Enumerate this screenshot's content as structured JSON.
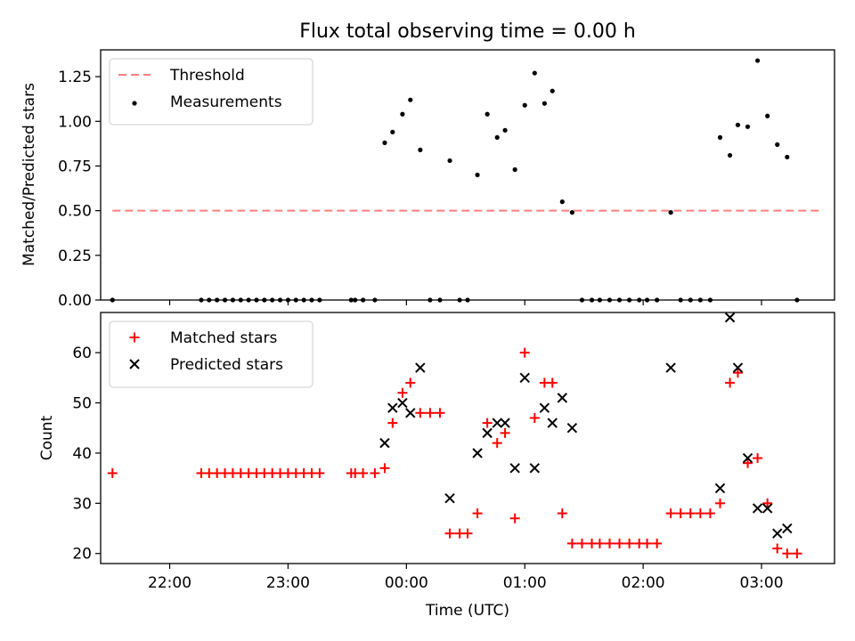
{
  "chart_data": [
    {
      "type": "scatter",
      "title": "Flux total observing time = 0.00 h",
      "xlabel": "",
      "ylabel": "Matched/Predicted stars",
      "ylim": [
        0,
        1.4
      ],
      "xlim": [
        "21:25",
        "03:37"
      ],
      "y_ticks": [
        "0.00",
        "0.25",
        "0.50",
        "0.75",
        "1.00",
        "1.25"
      ],
      "x_ticks": [
        "22:00",
        "23:00",
        "00:00",
        "01:00",
        "02:00",
        "03:00"
      ],
      "legend_position": "upper left",
      "series": [
        {
          "name": "Threshold",
          "kind": "line",
          "style": "dashed",
          "color": "#ff7f7f",
          "points": [
            [
              "21:31",
              0.5
            ],
            [
              "03:31",
              0.5
            ]
          ]
        },
        {
          "name": "Measurements",
          "kind": "scatter",
          "marker": "dot",
          "color": "#000000",
          "points": [
            [
              "21:31",
              0.0
            ],
            [
              "22:16",
              0.0
            ],
            [
              "22:20",
              0.0
            ],
            [
              "22:24",
              0.0
            ],
            [
              "22:28",
              0.0
            ],
            [
              "22:32",
              0.0
            ],
            [
              "22:36",
              0.0
            ],
            [
              "22:40",
              0.0
            ],
            [
              "22:44",
              0.0
            ],
            [
              "22:48",
              0.0
            ],
            [
              "22:52",
              0.0
            ],
            [
              "22:56",
              0.0
            ],
            [
              "23:00",
              0.0
            ],
            [
              "23:04",
              0.0
            ],
            [
              "23:08",
              0.0
            ],
            [
              "23:12",
              0.0
            ],
            [
              "23:16",
              0.0
            ],
            [
              "23:32",
              0.0
            ],
            [
              "23:34",
              0.0
            ],
            [
              "23:38",
              0.0
            ],
            [
              "23:44",
              0.0
            ],
            [
              "23:49",
              0.88
            ],
            [
              "23:53",
              0.94
            ],
            [
              "23:58",
              1.04
            ],
            [
              "00:02",
              1.12
            ],
            [
              "00:07",
              0.84
            ],
            [
              "00:12",
              0.0
            ],
            [
              "00:17",
              0.0
            ],
            [
              "00:22",
              0.78
            ],
            [
              "00:27",
              0.0
            ],
            [
              "00:31",
              0.0
            ],
            [
              "00:36",
              0.7
            ],
            [
              "00:41",
              1.04
            ],
            [
              "00:46",
              0.91
            ],
            [
              "00:50",
              0.95
            ],
            [
              "00:55",
              0.73
            ],
            [
              "01:00",
              1.09
            ],
            [
              "01:05",
              1.27
            ],
            [
              "01:10",
              1.1
            ],
            [
              "01:14",
              1.17
            ],
            [
              "01:19",
              0.55
            ],
            [
              "01:24",
              0.49
            ],
            [
              "01:29",
              0.0
            ],
            [
              "01:34",
              0.0
            ],
            [
              "01:38",
              0.0
            ],
            [
              "01:43",
              0.0
            ],
            [
              "01:48",
              0.0
            ],
            [
              "01:53",
              0.0
            ],
            [
              "01:58",
              0.0
            ],
            [
              "02:02",
              0.0
            ],
            [
              "02:07",
              0.0
            ],
            [
              "02:14",
              0.49
            ],
            [
              "02:19",
              0.0
            ],
            [
              "02:24",
              0.0
            ],
            [
              "02:29",
              0.0
            ],
            [
              "02:34",
              0.0
            ],
            [
              "02:39",
              0.91
            ],
            [
              "02:44",
              0.81
            ],
            [
              "02:48",
              0.98
            ],
            [
              "02:53",
              0.97
            ],
            [
              "02:58",
              1.34
            ],
            [
              "03:03",
              1.03
            ],
            [
              "03:08",
              0.87
            ],
            [
              "03:13",
              0.8
            ],
            [
              "03:18",
              0.0
            ]
          ]
        }
      ]
    },
    {
      "type": "scatter",
      "title": "",
      "xlabel": "Time (UTC)",
      "ylabel": "Count",
      "ylim": [
        18,
        68
      ],
      "xlim": [
        "21:25",
        "03:37"
      ],
      "y_ticks": [
        "20",
        "30",
        "40",
        "50",
        "60"
      ],
      "x_ticks": [
        "22:00",
        "23:00",
        "00:00",
        "01:00",
        "02:00",
        "03:00"
      ],
      "legend_position": "upper left",
      "series": [
        {
          "name": "Matched stars",
          "kind": "scatter",
          "marker": "plus",
          "color": "#ff0000",
          "points": [
            [
              "21:31",
              36
            ],
            [
              "22:16",
              36
            ],
            [
              "22:20",
              36
            ],
            [
              "22:24",
              36
            ],
            [
              "22:28",
              36
            ],
            [
              "22:32",
              36
            ],
            [
              "22:36",
              36
            ],
            [
              "22:40",
              36
            ],
            [
              "22:44",
              36
            ],
            [
              "22:48",
              36
            ],
            [
              "22:52",
              36
            ],
            [
              "22:56",
              36
            ],
            [
              "23:00",
              36
            ],
            [
              "23:04",
              36
            ],
            [
              "23:08",
              36
            ],
            [
              "23:12",
              36
            ],
            [
              "23:16",
              36
            ],
            [
              "23:32",
              36
            ],
            [
              "23:34",
              36
            ],
            [
              "23:38",
              36
            ],
            [
              "23:44",
              36
            ],
            [
              "23:49",
              37
            ],
            [
              "23:53",
              46
            ],
            [
              "23:58",
              52
            ],
            [
              "00:02",
              54
            ],
            [
              "00:07",
              48
            ],
            [
              "00:12",
              48
            ],
            [
              "00:17",
              48
            ],
            [
              "00:22",
              24
            ],
            [
              "00:27",
              24
            ],
            [
              "00:31",
              24
            ],
            [
              "00:36",
              28
            ],
            [
              "00:41",
              46
            ],
            [
              "00:46",
              42
            ],
            [
              "00:50",
              44
            ],
            [
              "00:55",
              27
            ],
            [
              "01:00",
              60
            ],
            [
              "01:05",
              47
            ],
            [
              "01:10",
              54
            ],
            [
              "01:14",
              54
            ],
            [
              "01:19",
              28
            ],
            [
              "01:24",
              22
            ],
            [
              "01:29",
              22
            ],
            [
              "01:34",
              22
            ],
            [
              "01:38",
              22
            ],
            [
              "01:43",
              22
            ],
            [
              "01:48",
              22
            ],
            [
              "01:53",
              22
            ],
            [
              "01:58",
              22
            ],
            [
              "02:02",
              22
            ],
            [
              "02:07",
              22
            ],
            [
              "02:14",
              28
            ],
            [
              "02:19",
              28
            ],
            [
              "02:24",
              28
            ],
            [
              "02:29",
              28
            ],
            [
              "02:34",
              28
            ],
            [
              "02:39",
              30
            ],
            [
              "02:44",
              54
            ],
            [
              "02:48",
              56
            ],
            [
              "02:53",
              38
            ],
            [
              "02:58",
              39
            ],
            [
              "03:03",
              30
            ],
            [
              "03:08",
              21
            ],
            [
              "03:13",
              20
            ],
            [
              "03:18",
              20
            ]
          ]
        },
        {
          "name": "Predicted stars",
          "kind": "scatter",
          "marker": "x",
          "color": "#000000",
          "points": [
            [
              "23:49",
              42
            ],
            [
              "23:53",
              49
            ],
            [
              "23:58",
              50
            ],
            [
              "00:02",
              48
            ],
            [
              "00:07",
              57
            ],
            [
              "00:22",
              31
            ],
            [
              "00:36",
              40
            ],
            [
              "00:41",
              44
            ],
            [
              "00:46",
              46
            ],
            [
              "00:50",
              46
            ],
            [
              "00:55",
              37
            ],
            [
              "01:00",
              55
            ],
            [
              "01:05",
              37
            ],
            [
              "01:10",
              49
            ],
            [
              "01:14",
              46
            ],
            [
              "01:19",
              51
            ],
            [
              "01:24",
              45
            ],
            [
              "02:14",
              57
            ],
            [
              "02:39",
              33
            ],
            [
              "02:44",
              67
            ],
            [
              "02:48",
              57
            ],
            [
              "02:53",
              39
            ],
            [
              "02:58",
              29
            ],
            [
              "03:03",
              29
            ],
            [
              "03:08",
              24
            ],
            [
              "03:13",
              25
            ]
          ]
        }
      ]
    }
  ]
}
